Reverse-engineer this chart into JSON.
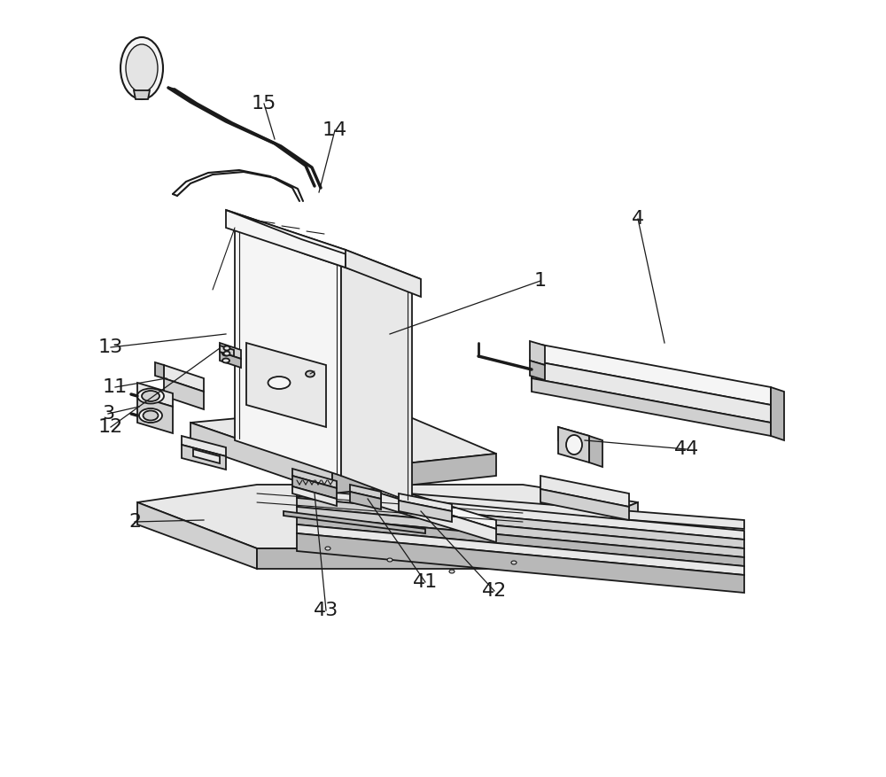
{
  "background_color": "#ffffff",
  "line_color": "#1a1a1a",
  "fill_light": "#e8e8e8",
  "fill_mid": "#d0d0d0",
  "fill_dark": "#b8b8b8",
  "fill_white": "#f5f5f5",
  "lw_main": 1.3,
  "lw_detail": 0.8,
  "lw_leader": 0.9,
  "label_fontsize": 16,
  "fig_width": 10.0,
  "fig_height": 8.77,
  "dpi": 100
}
